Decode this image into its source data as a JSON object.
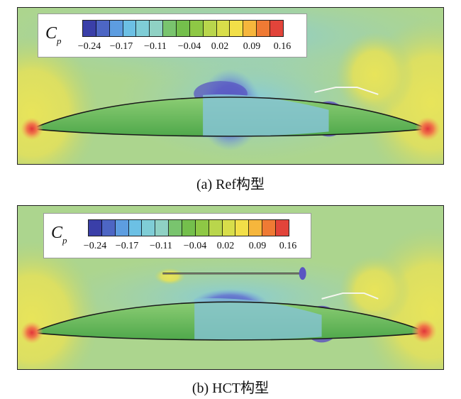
{
  "panels": [
    {
      "id": "a",
      "caption": "(a) Ref构型",
      "legend": {
        "symbol": "C",
        "subscript": "p",
        "ticks": [
          "−0.24",
          "−0.17",
          "−0.11",
          "−0.04",
          "0.02",
          "0.09",
          "0.16"
        ]
      }
    },
    {
      "id": "b",
      "caption": "(b) HCT构型",
      "legend": {
        "symbol": "C",
        "subscript": "p",
        "ticks": [
          "−0.24",
          "−0.17",
          "−0.11",
          "−0.04",
          "0.02",
          "0.09",
          "0.16"
        ]
      }
    }
  ],
  "colorbar_colors": [
    "#3a3fa8",
    "#4d66c4",
    "#5d9de0",
    "#6cc0e4",
    "#7fcdd6",
    "#8fd1c4",
    "#79c46e",
    "#74bf4c",
    "#8ec845",
    "#b9d64c",
    "#d8de4a",
    "#f2df48",
    "#f6b63c",
    "#ef7a34",
    "#e2443a"
  ]
}
